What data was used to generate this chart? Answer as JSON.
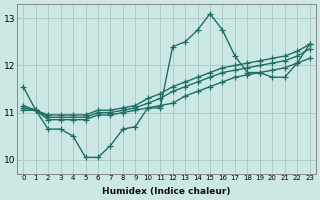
{
  "xlabel": "Humidex (Indice chaleur)",
  "ylabel": "",
  "xlim": [
    -0.5,
    23.5
  ],
  "ylim": [
    9.7,
    13.3
  ],
  "yticks": [
    10,
    11,
    12,
    13
  ],
  "xticks": [
    0,
    1,
    2,
    3,
    4,
    5,
    6,
    7,
    8,
    9,
    10,
    11,
    12,
    13,
    14,
    15,
    16,
    17,
    18,
    19,
    20,
    21,
    22,
    23
  ],
  "background_color": "#cce8e4",
  "grid_color": "#aaccc8",
  "line_color": "#1e6e65",
  "line_width": 1.0,
  "marker": "+",
  "marker_size": 4,
  "series": {
    "main": [
      11.55,
      11.05,
      10.65,
      10.65,
      10.5,
      10.05,
      10.05,
      10.3,
      10.65,
      10.7,
      11.1,
      11.1,
      12.4,
      12.5,
      12.75,
      13.1,
      12.75,
      12.2,
      11.85,
      11.85,
      11.75,
      11.75,
      12.05,
      12.45
    ],
    "linear1": [
      11.05,
      11.05,
      10.85,
      10.85,
      10.85,
      10.85,
      10.95,
      10.95,
      11.0,
      11.05,
      11.1,
      11.15,
      11.2,
      11.35,
      11.45,
      11.55,
      11.65,
      11.75,
      11.8,
      11.85,
      11.9,
      11.95,
      12.05,
      12.15
    ],
    "linear2": [
      11.1,
      11.05,
      10.9,
      10.9,
      10.9,
      10.9,
      11.0,
      11.0,
      11.05,
      11.1,
      11.2,
      11.3,
      11.45,
      11.55,
      11.65,
      11.75,
      11.85,
      11.9,
      11.95,
      12.0,
      12.05,
      12.1,
      12.2,
      12.35
    ],
    "linear3": [
      11.15,
      11.05,
      10.95,
      10.95,
      10.95,
      10.95,
      11.05,
      11.05,
      11.1,
      11.15,
      11.3,
      11.4,
      11.55,
      11.65,
      11.75,
      11.85,
      11.95,
      12.0,
      12.05,
      12.1,
      12.15,
      12.2,
      12.3,
      12.45
    ]
  }
}
